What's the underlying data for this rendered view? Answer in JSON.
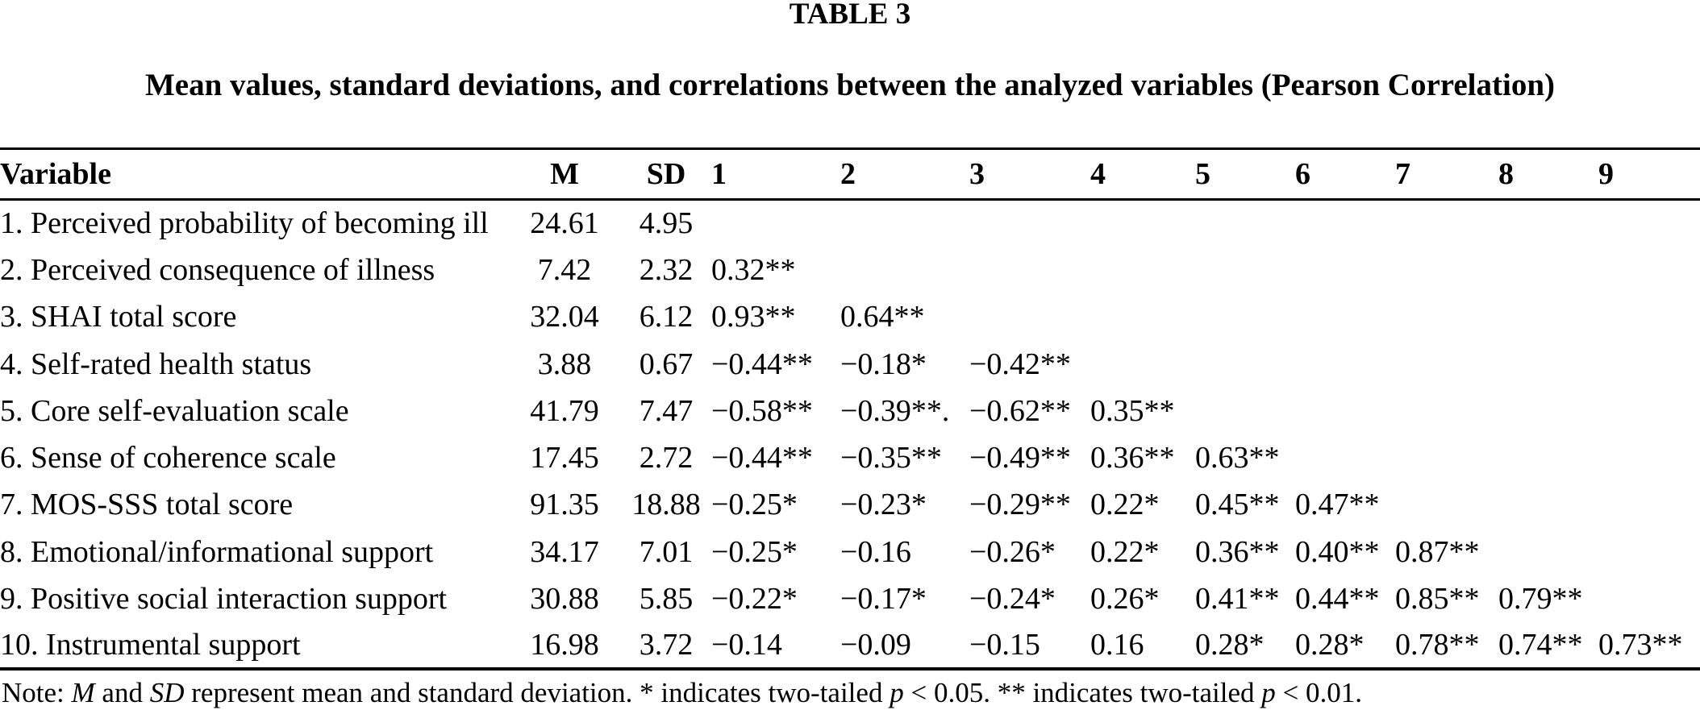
{
  "table": {
    "label": "TABLE 3",
    "caption": "Mean values, standard deviations, and correlations between the analyzed variables (Pearson Correlation)",
    "columns": [
      "Variable",
      "M",
      "SD",
      "1",
      "2",
      "3",
      "4",
      "5",
      "6",
      "7",
      "8",
      "9"
    ],
    "rows": [
      {
        "variable": "1. Perceived probability of becoming ill",
        "m": "24.61",
        "sd": "4.95",
        "r": [
          "",
          "",
          "",
          "",
          "",
          "",
          "",
          "",
          ""
        ]
      },
      {
        "variable": "2. Perceived consequence of illness",
        "m": "7.42",
        "sd": "2.32",
        "r": [
          "0.32**",
          "",
          "",
          "",
          "",
          "",
          "",
          "",
          ""
        ]
      },
      {
        "variable": "3. SHAI total score",
        "m": "32.04",
        "sd": "6.12",
        "r": [
          "0.93**",
          "0.64**",
          "",
          "",
          "",
          "",
          "",
          "",
          ""
        ]
      },
      {
        "variable": "4. Self-rated health status",
        "m": "3.88",
        "sd": "0.67",
        "r": [
          "−0.44**",
          "−0.18*",
          "−0.42**",
          "",
          "",
          "",
          "",
          "",
          ""
        ]
      },
      {
        "variable": "5. Core self-evaluation scale",
        "m": "41.79",
        "sd": "7.47",
        "r": [
          "−0.58**",
          "−0.39**.",
          "−0.62**",
          "0.35**",
          "",
          "",
          "",
          "",
          ""
        ]
      },
      {
        "variable": "6. Sense of coherence scale",
        "m": "17.45",
        "sd": "2.72",
        "r": [
          "−0.44**",
          "−0.35**",
          "−0.49**",
          "0.36**",
          "0.63**",
          "",
          "",
          "",
          ""
        ]
      },
      {
        "variable": "7. MOS-SSS total score",
        "m": "91.35",
        "sd": "18.88",
        "r": [
          "−0.25*",
          "−0.23*",
          "−0.29**",
          "0.22*",
          "0.45**",
          "0.47**",
          "",
          "",
          ""
        ]
      },
      {
        "variable": "8. Emotional/informational support",
        "m": "34.17",
        "sd": "7.01",
        "r": [
          "−0.25*",
          "−0.16",
          "−0.26*",
          "0.22*",
          "0.36**",
          "0.40**",
          "0.87**",
          "",
          ""
        ]
      },
      {
        "variable": "9. Positive social interaction support",
        "m": "30.88",
        "sd": "5.85",
        "r": [
          "−0.22*",
          "−0.17*",
          "−0.24*",
          "0.26*",
          "0.41**",
          "0.44**",
          "0.85**",
          "0.79**",
          ""
        ]
      },
      {
        "variable": "10. Instrumental support",
        "m": "16.98",
        "sd": "3.72",
        "r": [
          "−0.14",
          "−0.09",
          "−0.15",
          "0.16",
          "0.28*",
          "0.28*",
          "0.78**",
          "0.74**",
          "0.73**"
        ]
      }
    ],
    "note": {
      "segments": [
        {
          "text": "Note: ",
          "italic": false
        },
        {
          "text": "M",
          "italic": true
        },
        {
          "text": " and ",
          "italic": false
        },
        {
          "text": "SD",
          "italic": true
        },
        {
          "text": " represent mean and standard deviation. * indicates two-tailed ",
          "italic": false
        },
        {
          "text": "p",
          "italic": true
        },
        {
          "text": " < 0.05. ** indicates two-tailed ",
          "italic": false
        },
        {
          "text": "p",
          "italic": true
        },
        {
          "text": " < 0.01.",
          "italic": false
        }
      ]
    }
  }
}
